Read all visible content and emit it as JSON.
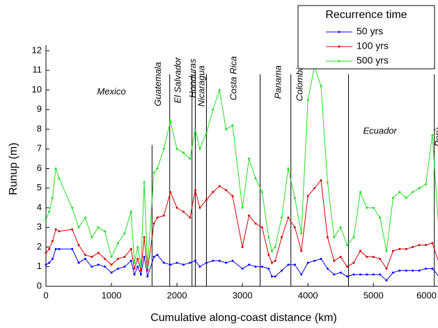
{
  "chart_data": {
    "type": "line",
    "xlabel": "Cumulative along-coast distance (km)",
    "ylabel": "Runup (m)",
    "legend_title": "Recurrence time",
    "legend": "upper right",
    "xlim": [
      0,
      6050
    ],
    "xticks": [
      0,
      1000,
      2000,
      3000,
      4000,
      5000,
      6000
    ],
    "ylim": [
      0,
      12
    ],
    "yticks": [
      0,
      1,
      2,
      3,
      4,
      5,
      6,
      7,
      8,
      9,
      10,
      11,
      12
    ],
    "boundaries": [
      1620,
      1890,
      2230,
      2280,
      2450,
      3270,
      3740,
      4620,
      5930
    ],
    "annotations": [
      "Mexico",
      "Guatemala",
      "El Salvador",
      "Honduras",
      "Nicaragua",
      "Costa Rica",
      "Panama",
      "Colombia",
      "Ecuador",
      "Perù"
    ],
    "x": [
      0,
      50,
      100,
      150,
      200,
      400,
      500,
      600,
      700,
      800,
      900,
      1000,
      1100,
      1200,
      1300,
      1350,
      1400,
      1450,
      1500,
      1550,
      1650,
      1700,
      1800,
      1900,
      2000,
      2100,
      2200,
      2280,
      2350,
      2450,
      2550,
      2650,
      2750,
      2850,
      3000,
      3100,
      3200,
      3300,
      3400,
      3450,
      3500,
      3600,
      3700,
      3800,
      3900,
      4000,
      4100,
      4200,
      4300,
      4400,
      4500,
      4600,
      4700,
      4800,
      4900,
      5000,
      5100,
      5200,
      5300,
      5400,
      5500,
      5600,
      5700,
      5800,
      5900,
      6000
    ],
    "series": [
      {
        "name": "50 yrs",
        "color": "#0000ff",
        "values": [
          1.1,
          1.2,
          1.4,
          1.9,
          1.9,
          1.9,
          1.2,
          1.4,
          1.0,
          1.1,
          1.0,
          0.7,
          0.9,
          1.0,
          1.3,
          0.6,
          1.0,
          0.6,
          1.5,
          0.5,
          1.5,
          1.6,
          1.2,
          1.1,
          1.2,
          1.1,
          1.2,
          1.3,
          1.0,
          1.2,
          1.3,
          1.3,
          1.2,
          1.3,
          0.9,
          1.1,
          1.0,
          1.0,
          0.9,
          0.5,
          0.5,
          0.8,
          1.1,
          1.1,
          0.6,
          1.2,
          1.3,
          1.4,
          0.9,
          0.6,
          0.7,
          0.5,
          0.6,
          0.6,
          0.6,
          0.6,
          0.6,
          0.3,
          0.7,
          0.8,
          0.8,
          0.8,
          0.8,
          0.9,
          0.9,
          0.5
        ]
      },
      {
        "name": "100 yrs",
        "color": "#d00000",
        "values": [
          1.7,
          1.9,
          2.3,
          2.9,
          2.8,
          2.9,
          2.1,
          1.6,
          1.5,
          1.7,
          1.4,
          1.1,
          1.4,
          1.5,
          1.9,
          0.9,
          1.4,
          0.8,
          2.5,
          0.8,
          3.2,
          3.5,
          3.6,
          4.8,
          4.0,
          3.8,
          3.5,
          4.9,
          4.0,
          4.4,
          4.8,
          5.1,
          4.9,
          4.6,
          2.0,
          3.6,
          3.2,
          3.0,
          1.6,
          1.2,
          1.3,
          2.5,
          3.5,
          3.0,
          1.8,
          4.6,
          5.0,
          5.4,
          2.5,
          1.3,
          1.5,
          1.0,
          1.2,
          1.8,
          1.5,
          1.5,
          1.4,
          0.9,
          1.8,
          1.9,
          1.9,
          2.0,
          2.1,
          2.1,
          2.2,
          1.2
        ]
      },
      {
        "name": "500 yrs",
        "color": "#22dd22",
        "values": [
          3.4,
          3.8,
          4.5,
          6.0,
          5.5,
          4.0,
          3.0,
          3.5,
          2.5,
          3.0,
          2.8,
          1.5,
          2.2,
          2.7,
          3.8,
          1.2,
          2.0,
          1.0,
          5.3,
          1.0,
          5.8,
          6.0,
          7.0,
          8.4,
          7.0,
          6.8,
          6.5,
          8.0,
          7.0,
          7.8,
          9.0,
          10.0,
          8.0,
          8.2,
          4.0,
          6.5,
          5.5,
          4.8,
          2.5,
          1.8,
          2.0,
          3.5,
          6.0,
          4.5,
          2.7,
          9.5,
          11.2,
          10.2,
          5.3,
          2.5,
          3.0,
          2.1,
          2.5,
          4.8,
          4.0,
          4.0,
          3.5,
          1.8,
          4.5,
          4.8,
          4.5,
          4.8,
          5.0,
          5.2,
          7.7,
          2.8
        ]
      }
    ]
  }
}
